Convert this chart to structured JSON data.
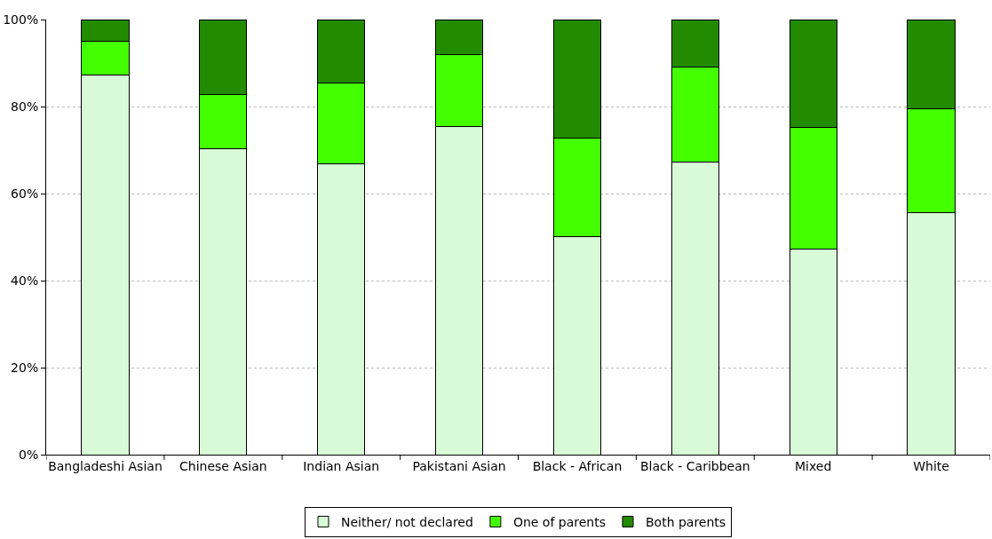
{
  "chart_data": {
    "type": "bar",
    "stacked": true,
    "categories": [
      "Bangladeshi Asian",
      "Chinese Asian",
      "Indian Asian",
      "Pakistani Asian",
      "Black - African",
      "Black - Caribbean",
      "Mixed",
      "White"
    ],
    "series": [
      {
        "name": "Neither/ not declared",
        "color": "#d9fad6",
        "values": [
          87.3,
          70.4,
          66.8,
          75.5,
          50.1,
          67.2,
          47.3,
          55.7
        ]
      },
      {
        "name": "One of parents",
        "color": "#44ff00",
        "values": [
          7.7,
          12.3,
          18.7,
          16.5,
          22.7,
          21.9,
          28.0,
          23.8
        ]
      },
      {
        "name": "Both parents",
        "color": "#228b00",
        "values": [
          5.0,
          17.3,
          14.5,
          8.0,
          27.2,
          10.9,
          24.7,
          20.5
        ]
      }
    ],
    "ylim": [
      0,
      100
    ],
    "yticks": [
      {
        "value": 0,
        "label": "0%"
      },
      {
        "value": 20,
        "label": "20%"
      },
      {
        "value": 40,
        "label": "40%"
      },
      {
        "value": 60,
        "label": "60%"
      },
      {
        "value": 80,
        "label": "80%"
      },
      {
        "value": 100,
        "label": "100%"
      }
    ],
    "grid": "y",
    "legend": "bottom"
  }
}
